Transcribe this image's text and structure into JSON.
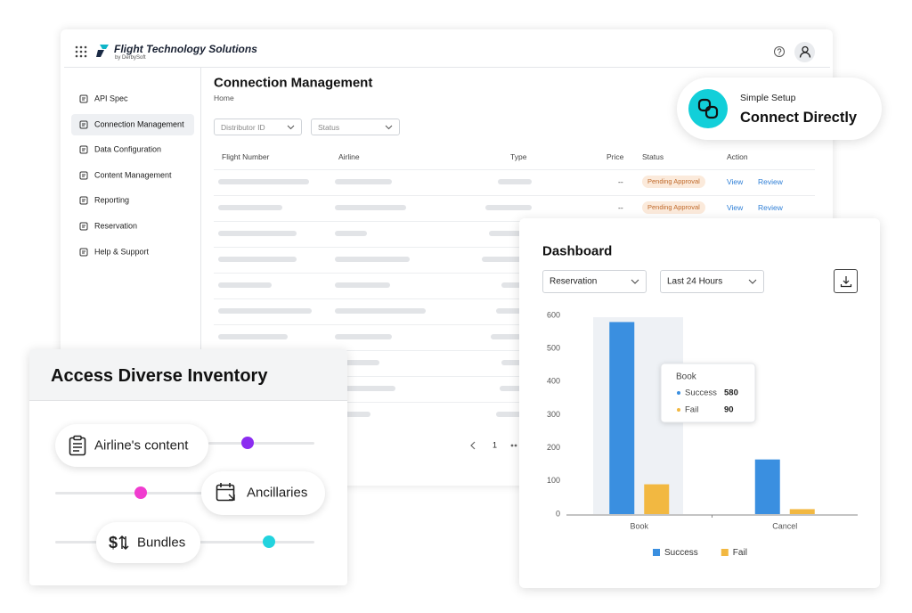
{
  "app": {
    "brand": "Flight Technology Solutions",
    "brand_sub": "by DerbySoft",
    "sidebar": [
      "API Spec",
      "Connection Management",
      "Data Configuration",
      "Content Management",
      "Reporting",
      "Reservation",
      "Help & Support"
    ],
    "sidebar_active": 1,
    "page_title": "Connection Management",
    "breadcrumb": "Home",
    "filters": [
      "Distributor ID",
      "Status"
    ],
    "table": {
      "columns": [
        "Flight Number",
        "Airline",
        "Type",
        "Price",
        "Status",
        "Action"
      ],
      "rows": [
        {
          "price": "--",
          "status": "Pending Approval",
          "actions": [
            "View",
            "Review"
          ]
        },
        {
          "price": "--",
          "status": "Pending Approval",
          "actions": [
            "View",
            "Review"
          ]
        }
      ]
    },
    "pagination": {
      "page": 1
    }
  },
  "connect_card": {
    "kicker": "Simple Setup",
    "title": "Connect Directly"
  },
  "dashboard": {
    "title": "Dashboard",
    "filters": [
      "Reservation",
      "Last 24 Hours"
    ],
    "chart": {
      "type": "bar",
      "categories": [
        "Book",
        "Cancel"
      ],
      "series": [
        {
          "name": "Success",
          "color": "#3a8fe0",
          "values": [
            580,
            165
          ]
        },
        {
          "name": "Fail",
          "color": "#f2b841",
          "values": [
            90,
            15
          ]
        }
      ],
      "ylim": [
        0,
        600
      ],
      "yticks": [
        0,
        100,
        200,
        300,
        400,
        500,
        600
      ],
      "grid": false,
      "legend": "bottom"
    }
  },
  "inventory_card": {
    "title": "Access Diverse Inventory",
    "items": [
      "Airline's content",
      "Ancillaries",
      "Bundles"
    ]
  }
}
